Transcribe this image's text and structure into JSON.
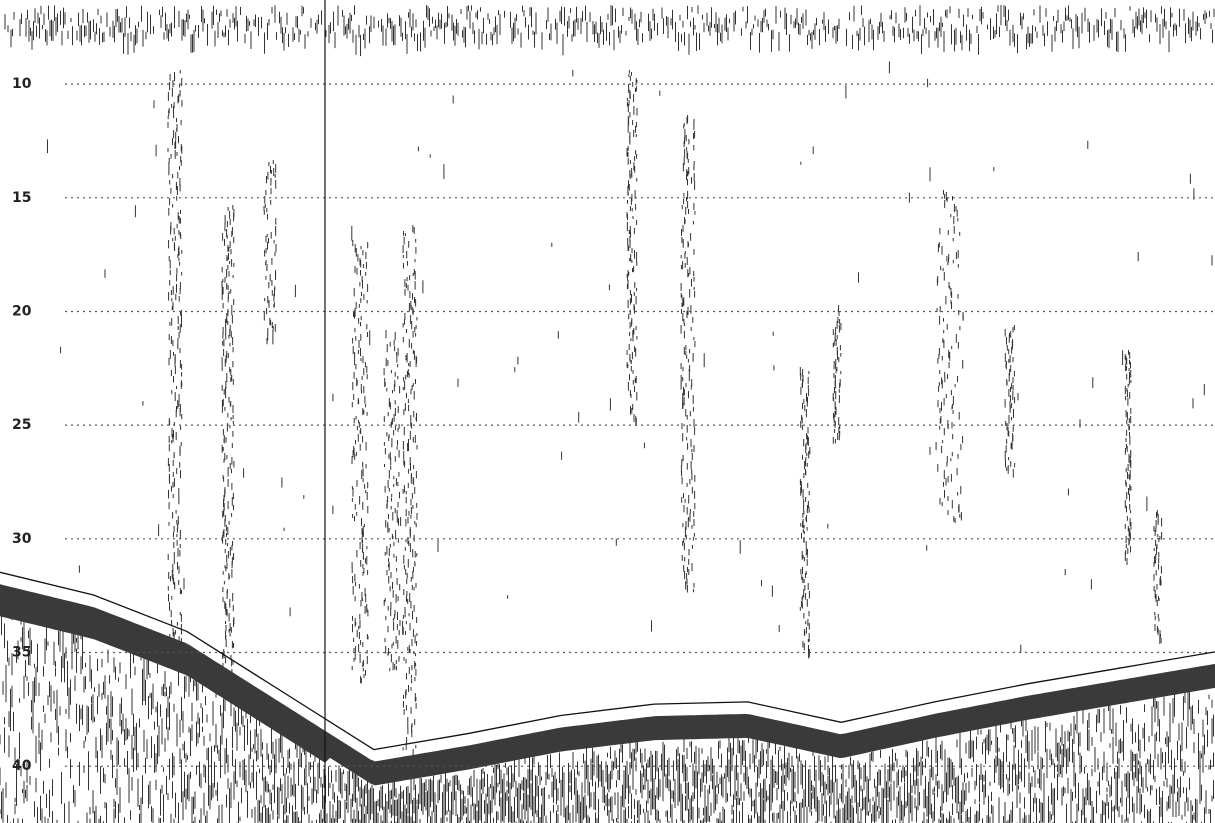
{
  "chart_data": {
    "type": "echogram",
    "ylim": [
      6.3,
      42.5
    ],
    "yticks": [
      10,
      15,
      20,
      25,
      30,
      35,
      40
    ],
    "grid": true,
    "values": [
      32.0,
      33.0,
      34.6,
      37.2,
      39.8,
      39.1,
      38.3,
      37.8,
      37.7,
      38.6,
      37.7,
      36.9,
      36.2,
      35.5
    ]
  }
}
